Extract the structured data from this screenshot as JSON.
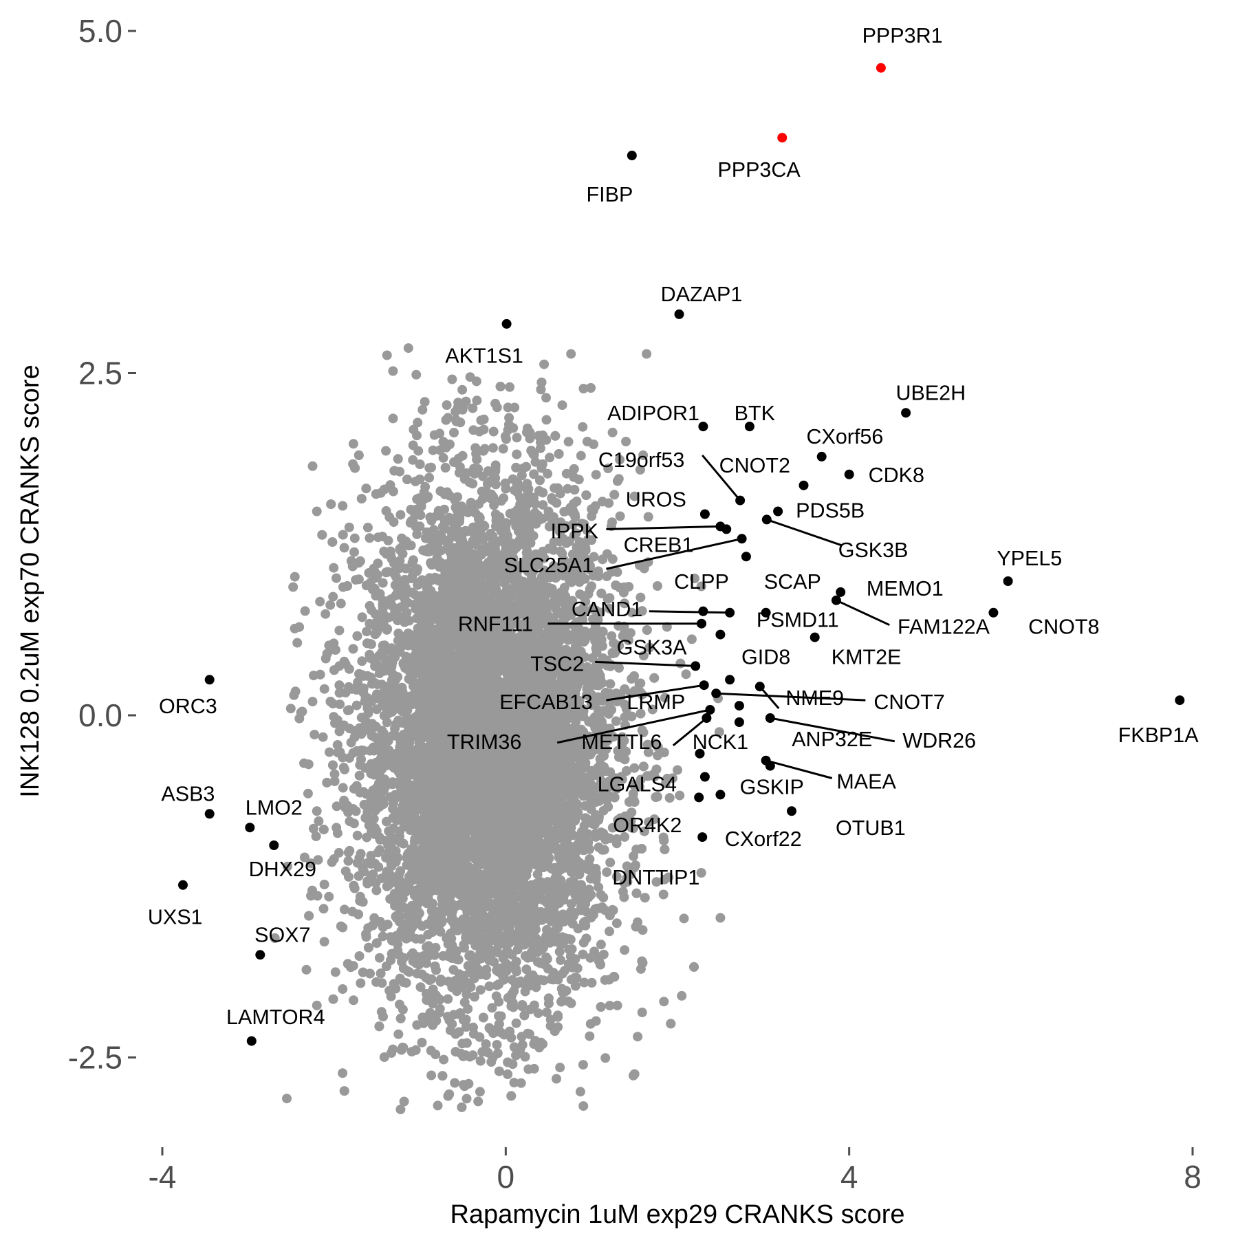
{
  "chart_data": {
    "type": "scatter",
    "title": "",
    "xlabel": "Rapamycin 1uM exp29 CRANKS score",
    "ylabel": "INK128 0.2uM exp70 CRANKS score",
    "xlim": [
      -4.6,
      8.3
    ],
    "ylim": [
      -3.09,
      5.22
    ],
    "x_ticks": [
      -4,
      0,
      4,
      8
    ],
    "x_tick_labels": [
      "-4",
      "0",
      "4",
      "8"
    ],
    "y_ticks": [
      -2.5,
      0,
      2.5,
      5
    ],
    "y_tick_labels": [
      "-2.5",
      "0.0",
      "2.5",
      "5.0"
    ],
    "grid": false,
    "legend": "none",
    "background_points": {
      "color": "#999999",
      "count": 9000,
      "center": [
        -0.2,
        -0.2
      ],
      "sd": [
        0.75,
        0.95
      ],
      "outliers": [
        [
          0.76,
          2.64
        ],
        [
          1.64,
          2.64
        ],
        [
          -0.34,
          2.44
        ],
        [
          0.47,
          2.32
        ],
        [
          -2.25,
          1.82
        ],
        [
          -2.2,
          1.49
        ],
        [
          -1.9,
          1.53
        ],
        [
          -2.1,
          0.74
        ],
        [
          -2.25,
          0.1
        ],
        [
          -2.35,
          -0.35
        ],
        [
          -2.2,
          -0.7
        ],
        [
          -2.0,
          -1.05
        ],
        [
          -1.9,
          -1.55
        ],
        [
          -1.9,
          -2.0
        ],
        [
          -2.2,
          -2.12
        ],
        [
          -1.25,
          -2.33
        ],
        [
          -0.87,
          -2.45
        ],
        [
          -0.48,
          -2.71
        ],
        [
          -0.3,
          -2.75
        ],
        [
          -2.55,
          -2.8
        ],
        [
          0.87,
          -2.75
        ],
        [
          0.73,
          -2.09
        ],
        [
          1.3,
          -2.12
        ],
        [
          2.05,
          -2.05
        ],
        [
          2.5,
          -1.48
        ],
        [
          1.85,
          -1.2
        ],
        [
          2.1,
          0.3
        ],
        [
          2.0,
          -0.4
        ],
        [
          2.2,
          1.0
        ],
        [
          1.6,
          1.9
        ],
        [
          1.4,
          2.0
        ],
        [
          -0.1,
          2.25
        ],
        [
          0.95,
          2.0
        ],
        [
          1.2,
          1.55
        ],
        [
          1.5,
          1.6
        ]
      ]
    },
    "highlight_color": "#ff0000",
    "labeled_color": "#000000",
    "points": [
      {
        "gene": "PPP3R1",
        "x": 4.37,
        "y": 4.73,
        "highlight": true
      },
      {
        "gene": "PPP3CA",
        "x": 3.22,
        "y": 4.22,
        "highlight": true
      },
      {
        "gene": "FIBP",
        "x": 1.47,
        "y": 4.09,
        "highlight": false
      },
      {
        "gene": "DAZAP1",
        "x": 2.02,
        "y": 2.93,
        "highlight": false
      },
      {
        "gene": "AKT1S1",
        "x": 0.01,
        "y": 2.86,
        "highlight": false
      },
      {
        "gene": "UBE2H",
        "x": 4.66,
        "y": 2.21,
        "highlight": false
      },
      {
        "gene": "ADIPOR1",
        "x": 2.3,
        "y": 2.11,
        "highlight": false
      },
      {
        "gene": "BTK",
        "x": 2.84,
        "y": 2.11,
        "highlight": false
      },
      {
        "gene": "CXorf56",
        "x": 3.68,
        "y": 1.89,
        "highlight": false
      },
      {
        "gene": "CDK8",
        "x": 4.0,
        "y": 1.76,
        "highlight": false
      },
      {
        "gene": "C19orf53",
        "x": 2.73,
        "y": 1.57,
        "highlight": false
      },
      {
        "gene": "CNOT2",
        "x": 3.47,
        "y": 1.68,
        "highlight": false
      },
      {
        "gene": "PDS5B",
        "x": 3.17,
        "y": 1.49,
        "highlight": false
      },
      {
        "gene": "GSK3B",
        "x": 3.04,
        "y": 1.43,
        "highlight": false
      },
      {
        "gene": "UROS",
        "x": 2.32,
        "y": 1.47,
        "highlight": false
      },
      {
        "gene": "IPPK",
        "x": 2.5,
        "y": 1.38,
        "highlight": false
      },
      {
        "gene": "CREB1",
        "x": 2.57,
        "y": 1.36,
        "highlight": false
      },
      {
        "gene": "SLC25A1",
        "x": 2.75,
        "y": 1.29,
        "highlight": false
      },
      {
        "gene": "SCAP",
        "x": 2.8,
        "y": 1.16,
        "highlight": false
      },
      {
        "gene": "YPEL5",
        "x": 5.85,
        "y": 0.98,
        "highlight": false
      },
      {
        "gene": "MEMO1",
        "x": 3.9,
        "y": 0.9,
        "highlight": false
      },
      {
        "gene": "FAM122A",
        "x": 3.85,
        "y": 0.84,
        "highlight": false
      },
      {
        "gene": "CNOT8",
        "x": 5.68,
        "y": 0.75,
        "highlight": false
      },
      {
        "gene": "CLPP",
        "x": 2.3,
        "y": 0.76,
        "highlight": false
      },
      {
        "gene": "CAND1",
        "x": 2.61,
        "y": 0.75,
        "highlight": false
      },
      {
        "gene": "PSMD11",
        "x": 3.03,
        "y": 0.75,
        "highlight": false
      },
      {
        "gene": "RNF111",
        "x": 2.28,
        "y": 0.67,
        "highlight": false
      },
      {
        "gene": "GSK3A",
        "x": 2.5,
        "y": 0.59,
        "highlight": false
      },
      {
        "gene": "KMT2E",
        "x": 3.6,
        "y": 0.57,
        "highlight": false
      },
      {
        "gene": "TSC2",
        "x": 2.21,
        "y": 0.36,
        "highlight": false
      },
      {
        "gene": "GID8",
        "x": 2.61,
        "y": 0.26,
        "highlight": false
      },
      {
        "gene": "NME9",
        "x": 2.96,
        "y": 0.21,
        "highlight": false
      },
      {
        "gene": "EFCAB13",
        "x": 2.31,
        "y": 0.22,
        "highlight": false
      },
      {
        "gene": "CNOT7",
        "x": 2.45,
        "y": 0.16,
        "highlight": false
      },
      {
        "gene": "LRMP",
        "x": 2.72,
        "y": 0.07,
        "highlight": false
      },
      {
        "gene": "FKBP1A",
        "x": 7.85,
        "y": 0.11,
        "highlight": false
      },
      {
        "gene": "ORC3",
        "x": -3.45,
        "y": 0.26,
        "highlight": false
      },
      {
        "gene": "TRIM36",
        "x": 2.38,
        "y": 0.04,
        "highlight": false
      },
      {
        "gene": "METTL6",
        "x": 2.34,
        "y": -0.02,
        "highlight": false
      },
      {
        "gene": "WDR26",
        "x": 3.08,
        "y": -0.02,
        "highlight": false
      },
      {
        "gene": "ANP32E",
        "x": 2.72,
        "y": -0.05,
        "highlight": false
      },
      {
        "gene": "NCK1",
        "x": 2.26,
        "y": -0.28,
        "highlight": false
      },
      {
        "gene": "MAEA",
        "x": 3.03,
        "y": -0.33,
        "highlight": false
      },
      {
        "gene": "GSKIP",
        "x": 3.08,
        "y": -0.37,
        "highlight": false
      },
      {
        "gene": "LGALS4",
        "x": 2.32,
        "y": -0.45,
        "highlight": false
      },
      {
        "gene": "OR4K2",
        "x": 2.25,
        "y": -0.6,
        "highlight": false
      },
      {
        "gene": "CXorf22",
        "x": 2.5,
        "y": -0.58,
        "highlight": false
      },
      {
        "gene": "OTUB1",
        "x": 3.33,
        "y": -0.7,
        "highlight": false
      },
      {
        "gene": "DNTTIP1",
        "x": 2.29,
        "y": -0.89,
        "highlight": false
      },
      {
        "gene": "ASB3",
        "x": -3.45,
        "y": -0.72,
        "highlight": false
      },
      {
        "gene": "LMO2",
        "x": -2.98,
        "y": -0.82,
        "highlight": false
      },
      {
        "gene": "DHX29",
        "x": -2.7,
        "y": -0.95,
        "highlight": false
      },
      {
        "gene": "UXS1",
        "x": -3.76,
        "y": -1.24,
        "highlight": false
      },
      {
        "gene": "SOX7",
        "x": -2.86,
        "y": -1.75,
        "highlight": false
      },
      {
        "gene": "LAMTOR4",
        "x": -2.96,
        "y": -2.38,
        "highlight": false
      }
    ],
    "labels": [
      {
        "text": "PPP3R1",
        "lx": 4.62,
        "ly": 4.97,
        "anchor": "middle"
      },
      {
        "text": "PPP3CA",
        "lx": 2.95,
        "ly": 3.99,
        "anchor": "middle"
      },
      {
        "text": "FIBP",
        "lx": 1.21,
        "ly": 3.81,
        "anchor": "middle"
      },
      {
        "text": "DAZAP1",
        "lx": 2.28,
        "ly": 3.08,
        "anchor": "middle"
      },
      {
        "text": "AKT1S1",
        "lx": -0.25,
        "ly": 2.63,
        "anchor": "middle"
      },
      {
        "text": "UBE2H",
        "lx": 4.95,
        "ly": 2.36,
        "anchor": "middle"
      },
      {
        "text": "ADIPOR1",
        "lx": 1.72,
        "ly": 2.21,
        "anchor": "middle"
      },
      {
        "text": "BTK",
        "lx": 2.9,
        "ly": 2.21,
        "anchor": "middle"
      },
      {
        "text": "CXorf56",
        "lx": 3.95,
        "ly": 2.04,
        "anchor": "middle"
      },
      {
        "text": "CDK8",
        "lx": 4.55,
        "ly": 1.76,
        "anchor": "middle"
      },
      {
        "text": "C19orf53",
        "lx": 1.58,
        "ly": 1.87,
        "anchor": "middle",
        "line_to": [
          2.29,
          1.9
        ]
      },
      {
        "text": "CNOT2",
        "lx": 2.9,
        "ly": 1.83,
        "anchor": "middle"
      },
      {
        "text": "UROS",
        "lx": 1.75,
        "ly": 1.58,
        "anchor": "middle"
      },
      {
        "text": "PDS5B",
        "lx": 3.78,
        "ly": 1.5,
        "anchor": "middle"
      },
      {
        "text": "IPPK",
        "lx": 0.8,
        "ly": 1.35,
        "anchor": "middle",
        "line_to": [
          1.17,
          1.36
        ]
      },
      {
        "text": "CREB1",
        "lx": 1.78,
        "ly": 1.25,
        "anchor": "middle"
      },
      {
        "text": "GSK3B",
        "lx": 4.28,
        "ly": 1.21,
        "anchor": "middle",
        "line_to": [
          3.92,
          1.24
        ]
      },
      {
        "text": "SLC25A1",
        "lx": 0.5,
        "ly": 1.1,
        "anchor": "middle",
        "line_to": [
          1.17,
          1.07
        ]
      },
      {
        "text": "YPEL5",
        "lx": 6.1,
        "ly": 1.15,
        "anchor": "middle"
      },
      {
        "text": "CLPP",
        "lx": 2.28,
        "ly": 0.98,
        "anchor": "middle"
      },
      {
        "text": "SCAP",
        "lx": 3.34,
        "ly": 0.98,
        "anchor": "middle"
      },
      {
        "text": "MEMO1",
        "lx": 4.65,
        "ly": 0.93,
        "anchor": "middle"
      },
      {
        "text": "CAND1",
        "lx": 1.18,
        "ly": 0.78,
        "anchor": "middle",
        "line_to": [
          1.67,
          0.76
        ]
      },
      {
        "text": "PSMD11",
        "lx": 3.4,
        "ly": 0.7,
        "anchor": "middle"
      },
      {
        "text": "RNF111",
        "lx": -0.12,
        "ly": 0.67,
        "anchor": "middle",
        "line_to": [
          0.49,
          0.67
        ]
      },
      {
        "text": "FAM122A",
        "lx": 5.1,
        "ly": 0.65,
        "anchor": "middle",
        "line_to": [
          4.47,
          0.66
        ]
      },
      {
        "text": "CNOT8",
        "lx": 6.5,
        "ly": 0.65,
        "anchor": "middle"
      },
      {
        "text": "GSK3A",
        "lx": 1.7,
        "ly": 0.5,
        "anchor": "middle"
      },
      {
        "text": "KMT2E",
        "lx": 4.2,
        "ly": 0.43,
        "anchor": "middle"
      },
      {
        "text": "TSC2",
        "lx": 0.6,
        "ly": 0.38,
        "anchor": "middle",
        "line_to": [
          1.04,
          0.39
        ]
      },
      {
        "text": "GID8",
        "lx": 3.03,
        "ly": 0.43,
        "anchor": "middle"
      },
      {
        "text": "NME9",
        "lx": 3.6,
        "ly": 0.13,
        "anchor": "middle",
        "line_to": [
          3.18,
          0.05
        ]
      },
      {
        "text": "CNOT7",
        "lx": 4.7,
        "ly": 0.1,
        "anchor": "middle",
        "line_to": [
          4.19,
          0.11
        ]
      },
      {
        "text": "EFCAB13",
        "lx": 0.47,
        "ly": 0.1,
        "anchor": "middle",
        "line_to": [
          1.17,
          0.11
        ]
      },
      {
        "text": "LRMP",
        "lx": 1.75,
        "ly": 0.1,
        "anchor": "middle"
      },
      {
        "text": "FKBP1A",
        "lx": 7.6,
        "ly": -0.14,
        "anchor": "middle"
      },
      {
        "text": "ORC3",
        "lx": -3.7,
        "ly": 0.07,
        "anchor": "middle"
      },
      {
        "text": "TRIM36",
        "lx": -0.25,
        "ly": -0.19,
        "anchor": "middle",
        "line_to": [
          0.6,
          -0.2
        ]
      },
      {
        "text": "METTL6",
        "lx": 1.35,
        "ly": -0.19,
        "anchor": "middle",
        "line_to": [
          1.95,
          -0.22
        ]
      },
      {
        "text": "NCK1",
        "lx": 2.5,
        "ly": -0.19,
        "anchor": "middle"
      },
      {
        "text": "WDR26",
        "lx": 5.05,
        "ly": -0.18,
        "anchor": "middle",
        "line_to": [
          4.53,
          -0.19
        ]
      },
      {
        "text": "ANP32E",
        "lx": 3.8,
        "ly": -0.17,
        "anchor": "middle"
      },
      {
        "text": "MAEA",
        "lx": 4.2,
        "ly": -0.48,
        "anchor": "middle",
        "line_to": [
          3.8,
          -0.46
        ]
      },
      {
        "text": "GSKIP",
        "lx": 3.1,
        "ly": -0.52,
        "anchor": "middle"
      },
      {
        "text": "LGALS4",
        "lx": 1.53,
        "ly": -0.5,
        "anchor": "middle"
      },
      {
        "text": "OR4K2",
        "lx": 1.65,
        "ly": -0.8,
        "anchor": "middle"
      },
      {
        "text": "CXorf22",
        "lx": 3.0,
        "ly": -0.9,
        "anchor": "middle"
      },
      {
        "text": "OTUB1",
        "lx": 4.25,
        "ly": -0.82,
        "anchor": "middle"
      },
      {
        "text": "DNTTIP1",
        "lx": 1.75,
        "ly": -1.18,
        "anchor": "middle"
      },
      {
        "text": "ASB3",
        "lx": -3.7,
        "ly": -0.57,
        "anchor": "middle"
      },
      {
        "text": "LMO2",
        "lx": -2.7,
        "ly": -0.67,
        "anchor": "middle"
      },
      {
        "text": "DHX29",
        "lx": -2.6,
        "ly": -1.12,
        "anchor": "middle"
      },
      {
        "text": "UXS1",
        "lx": -3.85,
        "ly": -1.47,
        "anchor": "middle"
      },
      {
        "text": "SOX7",
        "lx": -2.6,
        "ly": -1.6,
        "anchor": "middle"
      },
      {
        "text": "LAMTOR4",
        "lx": -2.68,
        "ly": -2.2,
        "anchor": "middle"
      }
    ]
  }
}
